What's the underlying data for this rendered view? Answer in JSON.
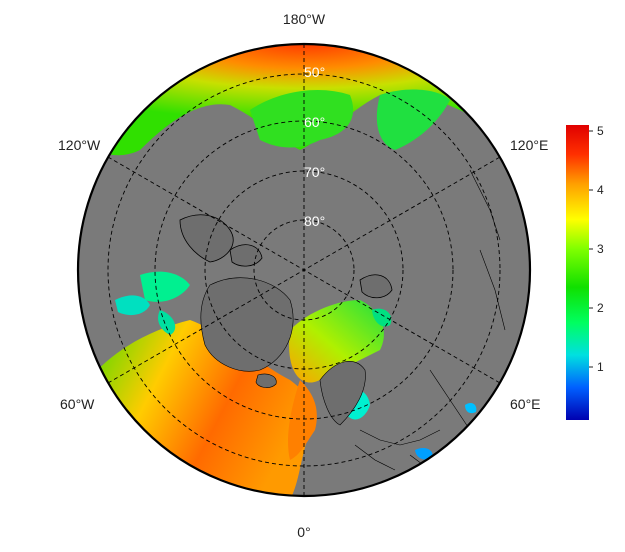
{
  "map": {
    "projection": "north-polar-stereographic",
    "longitude_labels": {
      "top": "180°W",
      "bottom": "0°",
      "upper_left": "120°W",
      "upper_right": "120°E",
      "lower_left": "60°W",
      "lower_right": "60°E"
    },
    "latitude_labels": [
      "50°",
      "60°",
      "70°",
      "80°"
    ],
    "land_color": "#7a7a7a",
    "border_color": "#000000",
    "graticule_style": "dashed"
  },
  "colorbar": {
    "min": 0,
    "max": 5.2,
    "ticks": [
      "1",
      "2",
      "3",
      "4",
      "5"
    ],
    "colors": [
      "#0000b0",
      "#0060ff",
      "#00e0e0",
      "#00ff60",
      "#10e000",
      "#80ff00",
      "#ffff00",
      "#ffa000",
      "#ff3000",
      "#e00000"
    ]
  }
}
